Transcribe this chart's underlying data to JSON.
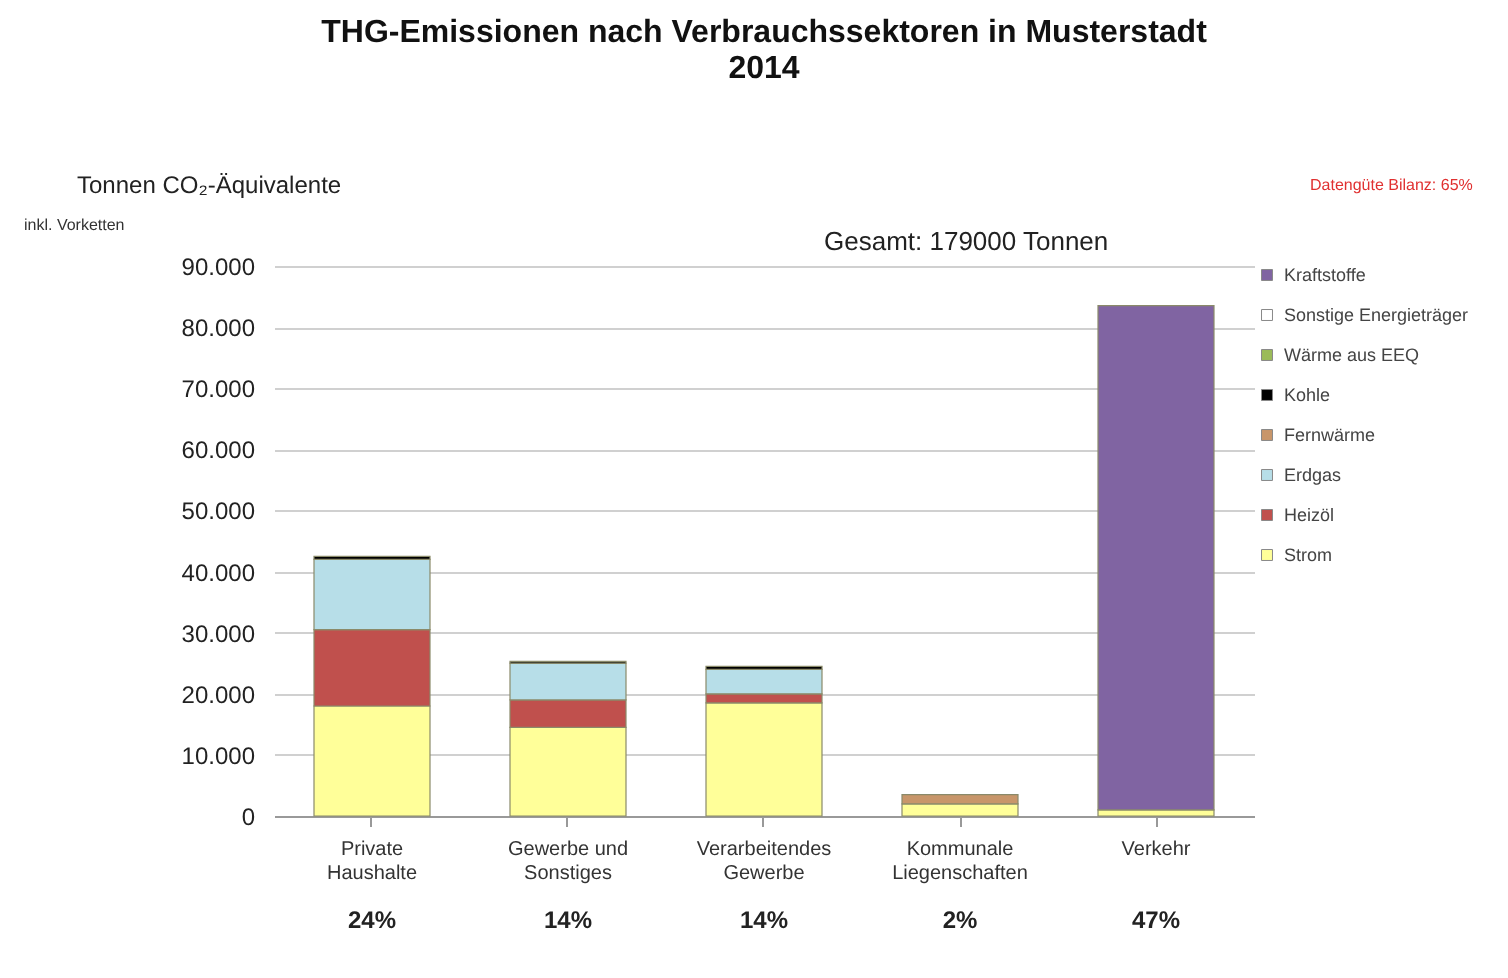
{
  "chart_data": {
    "type": "bar",
    "title": "THG-Emissionen nach Verbrauchssektoren in Musterstadt\n2014",
    "ylabel": "Tonnen CO₂-Äquivalente",
    "stacked": true,
    "grid": "y",
    "legend": "right",
    "categories": [
      "Private\nHaushalte",
      "Gewerbe und\nSonstiges",
      "Verarbeitendes\nGewerbe",
      "Kommunale\nLiegenschaften",
      "Verkehr"
    ],
    "series": [
      {
        "name": "Strom",
        "color": "#ffff99",
        "values": [
          18000,
          14500,
          18500,
          2000,
          1000
        ]
      },
      {
        "name": "Heizöl",
        "color": "#c0504d",
        "values": [
          12500,
          4500,
          1500,
          null,
          null
        ]
      },
      {
        "name": "Erdgas",
        "color": "#b7dee8",
        "values": [
          11500,
          6000,
          4000,
          null,
          null
        ]
      },
      {
        "name": "Fernwärme",
        "color": "#c8966a",
        "values": [
          null,
          null,
          null,
          1500,
          null
        ]
      },
      {
        "name": "Kohle",
        "color": "#000000",
        "values": [
          500,
          300,
          500,
          null,
          null
        ]
      },
      {
        "name": "Wärme aus EEQ",
        "color": "#9bbb59",
        "values": [
          null,
          null,
          null,
          null,
          null
        ]
      },
      {
        "name": "Sonstige Energieträger",
        "color": "#ffffff",
        "values": [
          null,
          null,
          null,
          null,
          null
        ]
      },
      {
        "name": "Kraftstoffe",
        "color": "#8064a2",
        "values": [
          null,
          null,
          null,
          null,
          82500
        ]
      }
    ],
    "ylim": [
      0,
      90000
    ],
    "yticks": [
      {
        "value": 0,
        "label": "0"
      },
      {
        "value": 10000,
        "label": "10.000"
      },
      {
        "value": 20000,
        "label": "20.000"
      },
      {
        "value": 30000,
        "label": "30.000"
      },
      {
        "value": 40000,
        "label": "40.000"
      },
      {
        "value": 50000,
        "label": "50.000"
      },
      {
        "value": 60000,
        "label": "60.000"
      },
      {
        "value": 70000,
        "label": "70.000"
      },
      {
        "value": 80000,
        "label": "80.000"
      },
      {
        "value": 90000,
        "label": "90.000"
      }
    ],
    "annotations": [
      "inkl. Vorketten",
      "Gesamt: 179000 Tonnen",
      "Datengüte Bilanz: 65%",
      "24%",
      "14%",
      "14%",
      "2%",
      "47%"
    ]
  }
}
